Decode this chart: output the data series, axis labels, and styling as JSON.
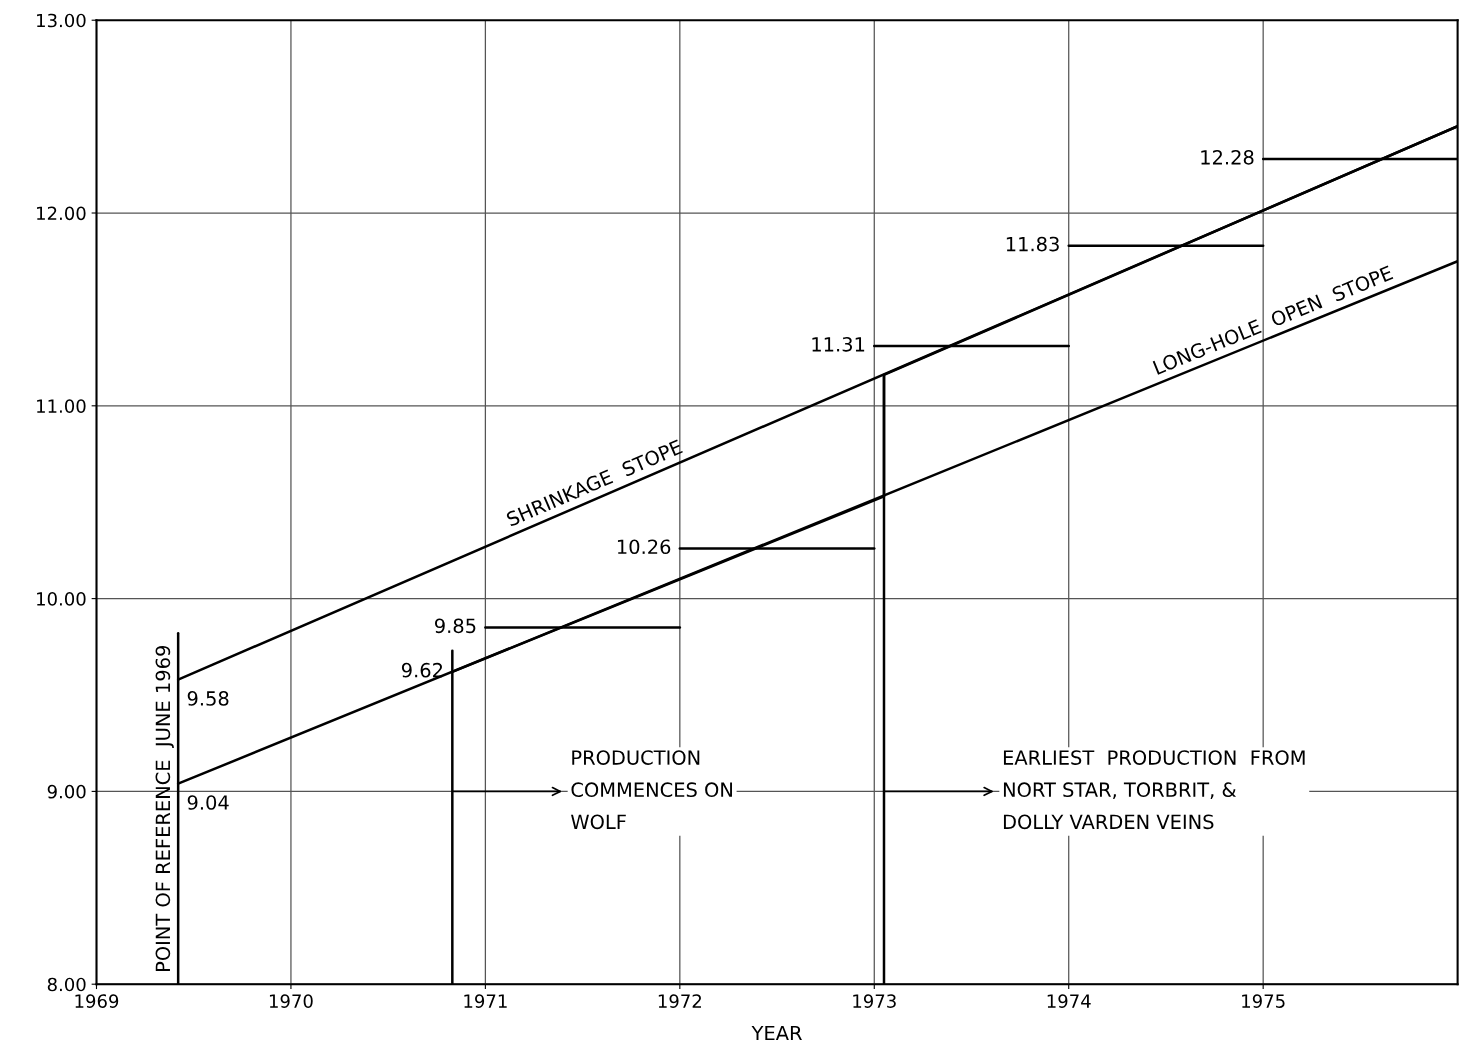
{
  "chart_data": {
    "type": "line",
    "xlabel": "YEAR",
    "xlim": [
      1969,
      1976
    ],
    "xticks": [
      1969,
      1970,
      1971,
      1972,
      1973,
      1974,
      1975
    ],
    "ylim": [
      8,
      13
    ],
    "yticks": [
      {
        "value": 8,
        "label": "8.00"
      },
      {
        "value": 9,
        "label": "9.00"
      },
      {
        "value": 10,
        "label": "10.00"
      },
      {
        "value": 11,
        "label": "11.00"
      },
      {
        "value": 12,
        "label": "12.00"
      },
      {
        "value": 13,
        "label": "13.00"
      }
    ],
    "grid": true,
    "legend": false,
    "marker": "none",
    "line_style": "solid",
    "series": [
      {
        "name": "SHRINKAGE  STOPE",
        "color": "#000000",
        "x": [
          1969.42,
          1976
        ],
        "values": [
          9.58,
          12.45
        ],
        "value_labels": [
          "9.58",
          null
        ]
      },
      {
        "name": "LONG-HOLE  OPEN  STOPE",
        "color": "#000000",
        "x": [
          1969.42,
          1976
        ],
        "values": [
          9.04,
          11.75
        ],
        "value_labels": [
          "9.04",
          null
        ]
      },
      {
        "color": "#000000",
        "x": [
          1970.83,
          1973.05,
          1973.05,
          1976
        ],
        "values": [
          9.62,
          10.53,
          11.16,
          12.45
        ],
        "value_labels": [
          "9.62",
          null,
          null,
          null
        ]
      },
      {
        "name": "POINT OF REFERENCE  JUNE 1969",
        "color": "#000000",
        "x": [
          1969.42,
          1969.42
        ],
        "values": [
          8,
          9.82
        ]
      },
      {
        "color": "#000000",
        "x": [
          1970.83,
          1970.83
        ],
        "values": [
          8,
          9.73
        ]
      },
      {
        "color": "#000000",
        "x": [
          1973.05,
          1973.05
        ],
        "values": [
          8,
          11.16
        ]
      },
      {
        "color": "#000000",
        "x": [
          1971,
          1972
        ],
        "values": [
          9.85,
          9.85
        ],
        "value_labels": [
          "9.85",
          null
        ]
      },
      {
        "color": "#000000",
        "x": [
          1972,
          1973
        ],
        "values": [
          10.26,
          10.26
        ],
        "value_labels": [
          "10.26",
          null
        ]
      },
      {
        "color": "#000000",
        "x": [
          1973,
          1974
        ],
        "values": [
          11.31,
          11.31
        ],
        "value_labels": [
          "11.31",
          null
        ]
      },
      {
        "color": "#000000",
        "x": [
          1974,
          1975
        ],
        "values": [
          11.83,
          11.83
        ],
        "value_labels": [
          "11.83",
          null
        ]
      },
      {
        "color": "#000000",
        "x": [
          1975,
          1976
        ],
        "values": [
          12.28,
          12.28
        ],
        "value_labels": [
          "12.28",
          null
        ]
      }
    ],
    "annotations": [
      {
        "text": "PRODUCTION\nCOMMENCES ON\nWOLF",
        "x": 1970.83,
        "y": 9.0
      },
      {
        "text": "EARLIEST  PRODUCTION  FROM\nNORT STAR, TORBRIT, &\nDOLLY VARDEN VEINS",
        "x": 1973.05,
        "y": 9.0
      }
    ]
  }
}
